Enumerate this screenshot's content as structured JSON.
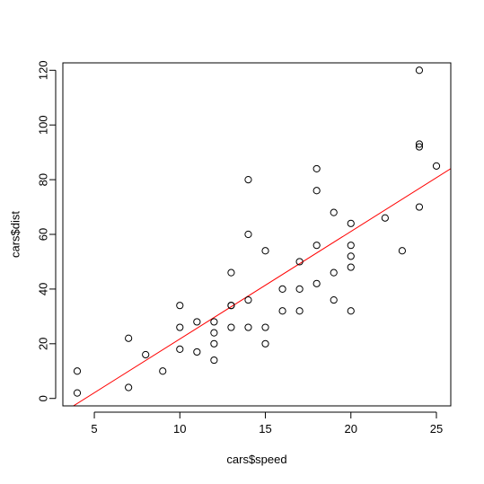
{
  "chart_data": {
    "type": "scatter",
    "title": "",
    "xlabel": "cars$speed",
    "ylabel": "cars$dist",
    "xlim": [
      3.16,
      25.84
    ],
    "ylim": [
      -2.72,
      122.72
    ],
    "xticks": [
      5,
      10,
      15,
      20,
      25
    ],
    "yticks": [
      0,
      20,
      40,
      60,
      80,
      100,
      120
    ],
    "grid": false,
    "legend": "none",
    "point_color": "#000000",
    "x": [
      4,
      4,
      7,
      7,
      8,
      9,
      10,
      10,
      10,
      11,
      11,
      12,
      12,
      12,
      12,
      13,
      13,
      13,
      13,
      14,
      14,
      14,
      14,
      15,
      15,
      15,
      16,
      16,
      17,
      17,
      17,
      18,
      18,
      18,
      18,
      19,
      19,
      19,
      20,
      20,
      20,
      20,
      20,
      22,
      23,
      24,
      24,
      24,
      24,
      25
    ],
    "y": [
      2,
      10,
      4,
      22,
      16,
      10,
      18,
      26,
      34,
      17,
      28,
      14,
      20,
      24,
      28,
      26,
      34,
      34,
      46,
      26,
      36,
      60,
      80,
      20,
      26,
      54,
      32,
      40,
      32,
      40,
      50,
      42,
      56,
      76,
      84,
      36,
      46,
      68,
      32,
      48,
      52,
      56,
      64,
      66,
      54,
      70,
      92,
      93,
      120,
      85
    ],
    "fit_line": {
      "intercept": -17.579,
      "slope": 3.932,
      "color": "#ff0000"
    }
  }
}
